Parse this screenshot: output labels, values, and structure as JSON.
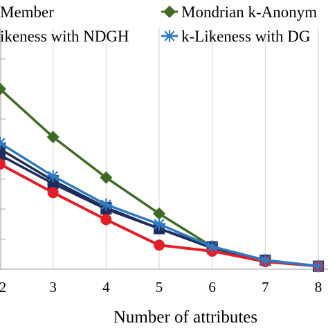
{
  "chart_data": {
    "type": "line",
    "xlabel": "Number of attributes",
    "ylabel": "",
    "x": [
      2,
      3,
      4,
      5,
      6,
      7,
      8
    ],
    "xlim": [
      2,
      8
    ],
    "ylim": [
      0,
      1
    ],
    "grid": "vertical",
    "legend_position": "top",
    "series": [
      {
        "legend_text": "Member",
        "color": "#1f2d5c",
        "marker": "square",
        "values": [
          0.4,
          0.295,
          0.205,
          0.135,
          0.075,
          0.03,
          0.01
        ]
      },
      {
        "legend_text": "Mondrian k-Anonym",
        "color": "#3d6b22",
        "marker": "diamond",
        "values": [
          0.6,
          0.44,
          0.305,
          0.185,
          0.075,
          0.03,
          0.01
        ]
      },
      {
        "legend_text": "",
        "color": "#e41e26",
        "marker": "circle",
        "values": [
          0.35,
          0.255,
          0.165,
          0.08,
          0.06,
          0.025,
          0.01
        ]
      },
      {
        "legend_text": "ikeness with NDGH",
        "color": "#1f2d5c",
        "marker": "square",
        "values": [
          0.38,
          0.285,
          0.2,
          0.135,
          0.07,
          0.03,
          0.01
        ]
      },
      {
        "legend_text": "k-Likeness with DG",
        "color": "#2e7bc4",
        "marker": "star",
        "values": [
          0.42,
          0.31,
          0.215,
          0.15,
          0.075,
          0.03,
          0.01
        ]
      }
    ]
  }
}
